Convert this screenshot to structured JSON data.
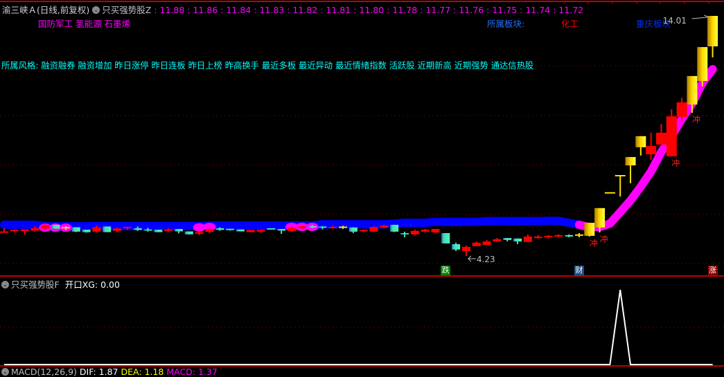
{
  "header": {
    "stock_title": "渝三峡Ａ(日线,前复权)",
    "indicator_icon": "chevron-down-circle-icon",
    "indicator_name": "只买强势股Z",
    "values": [
      "11.88",
      "11.86",
      "11.84",
      "11.83",
      "11.82",
      "11.81",
      "11.80",
      "11.78",
      "11.77",
      "11.76",
      "11.75",
      "11.74",
      "11.72"
    ]
  },
  "concepts": "国防军工 氢能源 石墨烯",
  "sector": {
    "label": "所属板块:",
    "industry": "化工",
    "region": "重庆板块"
  },
  "styles": "所属风格: 融资融券 融资增加 昨日涨停 昨日连板 昨日上榜 昨高换手 最近多板 最近异动 最近情绪指数 活跃股 近期新高 近期强势 通达信热股",
  "lower_panel": {
    "indicator_name": "只买强势股F",
    "xg_label": "开口XG: 0.00"
  },
  "macd_bar": {
    "name": "MACD(12,26,9)",
    "dif": "DIF: 1.87",
    "dea": "DEA: 1.18",
    "macd": "MACD: 1.37"
  },
  "colors": {
    "up_red": "#ff0000",
    "down_cyan": "#40e0b0",
    "strong_yellow": "#ffe000",
    "band_blue": "#0000ff",
    "band_magenta": "#ff00ff",
    "concept_magenta": "#ff00ff",
    "style_cyan": "#00ffff",
    "sector_blue": "#2070ff",
    "industry_red": "#ff0000",
    "region_blue": "#0030ff"
  },
  "chart_data": {
    "type": "candlestick",
    "ylim": [
      4.23,
      14.01
    ],
    "grid": true,
    "candles_fields": [
      "open",
      "high",
      "low",
      "close",
      "color"
    ],
    "candles": [
      [
        5.2,
        5.36,
        5.2,
        5.2,
        "red"
      ],
      [
        5.24,
        5.3,
        5.19,
        5.27,
        "red"
      ],
      [
        5.24,
        5.31,
        5.09,
        5.31,
        "red"
      ],
      [
        5.26,
        5.44,
        5.22,
        5.36,
        "red"
      ],
      [
        5.34,
        5.52,
        5.29,
        5.48,
        "red"
      ],
      [
        5.5,
        5.5,
        5.34,
        5.34,
        "cyan"
      ],
      [
        5.38,
        5.44,
        5.3,
        5.38,
        "yellow"
      ],
      [
        5.4,
        5.4,
        5.2,
        5.22,
        "cyan"
      ],
      [
        5.3,
        5.3,
        5.18,
        5.2,
        "cyan"
      ],
      [
        5.22,
        5.48,
        5.19,
        5.4,
        "red"
      ],
      [
        5.43,
        5.43,
        5.2,
        5.2,
        "cyan"
      ],
      [
        5.25,
        5.38,
        5.2,
        5.35,
        "red"
      ],
      [
        5.35,
        5.39,
        5.29,
        5.39,
        "red"
      ],
      [
        5.36,
        5.43,
        5.25,
        5.29,
        "cyan"
      ],
      [
        5.31,
        5.38,
        5.22,
        5.26,
        "cyan"
      ],
      [
        5.3,
        5.3,
        5.2,
        5.2,
        "cyan"
      ],
      [
        5.25,
        5.36,
        5.21,
        5.31,
        "red"
      ],
      [
        5.33,
        5.33,
        5.15,
        5.23,
        "cyan"
      ],
      [
        5.23,
        5.23,
        5.11,
        5.11,
        "cyan"
      ],
      [
        5.13,
        5.28,
        5.08,
        5.2,
        "red"
      ],
      [
        5.21,
        5.38,
        5.15,
        5.33,
        "red"
      ],
      [
        5.36,
        5.4,
        5.26,
        5.29,
        "cyan"
      ],
      [
        5.31,
        5.33,
        5.26,
        5.29,
        "cyan"
      ],
      [
        5.31,
        5.31,
        5.23,
        5.23,
        "cyan"
      ],
      [
        5.2,
        5.29,
        5.2,
        5.29,
        "red"
      ],
      [
        5.22,
        5.29,
        5.17,
        5.29,
        "red"
      ],
      [
        5.33,
        5.33,
        5.31,
        5.31,
        "cyan"
      ],
      [
        5.33,
        5.33,
        5.13,
        5.26,
        "cyan"
      ],
      [
        5.24,
        5.43,
        5.21,
        5.38,
        "red"
      ],
      [
        5.36,
        5.46,
        5.33,
        5.44,
        "red"
      ],
      [
        5.44,
        5.5,
        5.36,
        5.39,
        "cyan"
      ],
      [
        5.43,
        5.44,
        5.31,
        5.38,
        "cyan"
      ],
      [
        5.36,
        5.47,
        5.34,
        5.41,
        "red"
      ],
      [
        5.4,
        5.46,
        5.33,
        5.4,
        "yellow"
      ],
      [
        5.39,
        5.4,
        5.16,
        5.22,
        "cyan"
      ],
      [
        5.24,
        5.3,
        5.18,
        5.26,
        "red"
      ],
      [
        5.22,
        5.44,
        5.2,
        5.41,
        "red"
      ],
      [
        5.39,
        5.5,
        5.36,
        5.47,
        "red"
      ],
      [
        5.5,
        5.5,
        5.2,
        5.22,
        "cyan"
      ],
      [
        5.16,
        5.22,
        4.99,
        5.11,
        "cyan"
      ],
      [
        5.11,
        5.3,
        5.08,
        5.25,
        "red"
      ],
      [
        5.22,
        5.33,
        5.19,
        5.3,
        "red"
      ],
      [
        5.19,
        5.33,
        5.16,
        5.33,
        "red"
      ],
      [
        5.16,
        5.16,
        4.74,
        4.74,
        "cyan"
      ],
      [
        4.71,
        4.77,
        4.43,
        4.49,
        "cyan"
      ],
      [
        4.43,
        4.66,
        4.23,
        4.6,
        "red"
      ],
      [
        4.63,
        4.82,
        4.63,
        4.77,
        "red"
      ],
      [
        4.68,
        4.88,
        4.68,
        4.82,
        "red"
      ],
      [
        4.82,
        4.96,
        4.8,
        4.91,
        "red"
      ],
      [
        4.96,
        4.96,
        4.82,
        4.88,
        "cyan"
      ],
      [
        4.94,
        4.94,
        4.71,
        4.82,
        "cyan"
      ],
      [
        4.8,
        5.11,
        4.8,
        5.02,
        "red"
      ],
      [
        4.96,
        5.08,
        4.94,
        5.02,
        "red"
      ],
      [
        4.99,
        5.08,
        4.94,
        5.02,
        "red"
      ],
      [
        5.02,
        5.11,
        4.99,
        5.08,
        "red"
      ],
      [
        5.08,
        5.11,
        4.99,
        5.02,
        "cyan"
      ],
      [
        5.08,
        5.16,
        4.99,
        5.08,
        "yellow"
      ],
      [
        5.05,
        5.58,
        5.02,
        5.58,
        "yellow"
      ],
      [
        5.39,
        6.18,
        5.19,
        6.18,
        "yellow"
      ],
      [
        6.8,
        6.8,
        6.8,
        6.8,
        "yellow"
      ],
      [
        7.5,
        7.5,
        6.65,
        7.5,
        "yellow"
      ],
      [
        7.92,
        8.26,
        7.19,
        8.26,
        "yellow"
      ],
      [
        8.66,
        9.11,
        8.32,
        9.11,
        "yellow"
      ],
      [
        8.37,
        9.25,
        8.15,
        8.71,
        "red"
      ],
      [
        8.77,
        9.61,
        8.71,
        9.25,
        "red"
      ],
      [
        8.29,
        10.21,
        8.29,
        9.92,
        "red"
      ],
      [
        9.9,
        10.68,
        9.73,
        10.49,
        "red"
      ],
      [
        10.4,
        11.56,
        10.06,
        11.56,
        "yellow"
      ],
      [
        11.36,
        12.74,
        11.14,
        12.74,
        "yellow"
      ],
      [
        12.77,
        14.01,
        12.32,
        14.01,
        "yellow"
      ]
    ],
    "band": [
      5.5,
      5.5,
      5.5,
      5.5,
      5.44,
      5.44,
      5.44,
      5.44,
      5.44,
      5.45,
      5.45,
      5.45,
      5.45,
      5.45,
      5.45,
      5.45,
      5.45,
      5.45,
      5.45,
      5.45,
      5.47,
      5.47,
      5.47,
      5.47,
      5.47,
      5.47,
      5.47,
      5.47,
      5.47,
      5.47,
      5.47,
      5.52,
      5.52,
      5.52,
      5.52,
      5.52,
      5.52,
      5.52,
      5.55,
      5.58,
      5.58,
      5.58,
      5.62,
      5.62,
      5.62,
      5.62,
      5.62,
      5.65,
      5.65,
      5.65,
      5.65,
      5.65,
      5.65,
      5.66,
      5.66,
      5.58,
      5.5,
      5.4,
      5.41,
      5.55,
      6.01,
      6.49,
      7.05,
      7.67,
      8.46,
      9.11,
      9.81,
      10.43,
      11.28,
      11.84
    ],
    "band_magenta_from": 57,
    "band_magenta_blobs": [
      4,
      5,
      6,
      19,
      20,
      28,
      29,
      30
    ],
    "high_label": {
      "index": 69,
      "text": "14.01"
    },
    "low_label": {
      "index": 45,
      "text": "4.23"
    },
    "signals": [
      {
        "index": 57,
        "text": "冲"
      },
      {
        "index": 58,
        "text": "冲"
      },
      {
        "index": 65,
        "text": "冲"
      },
      {
        "index": 67,
        "text": "冲"
      }
    ],
    "bottom_markers": [
      {
        "index": 43,
        "text": "跌",
        "bg": "#008000"
      },
      {
        "index": 56,
        "text": "财",
        "bg": "#1a4f8a"
      },
      {
        "index": 69,
        "text": "涨",
        "bg": "#8b0000"
      }
    ],
    "lower_series": [
      0,
      0,
      0,
      0,
      0,
      0,
      0,
      0,
      0,
      0,
      0,
      0,
      0,
      0,
      0,
      0,
      0,
      0,
      0,
      0,
      0,
      0,
      0,
      0,
      0,
      0,
      0,
      0,
      0,
      0,
      0,
      0,
      0,
      0,
      0,
      0,
      0,
      0,
      0,
      0,
      0,
      0,
      0,
      0,
      0,
      0,
      0,
      0,
      0,
      0,
      0,
      0,
      0,
      0,
      0,
      0,
      0,
      0,
      0,
      0,
      1,
      0,
      0,
      0,
      0,
      0,
      0,
      0,
      0,
      0
    ]
  }
}
